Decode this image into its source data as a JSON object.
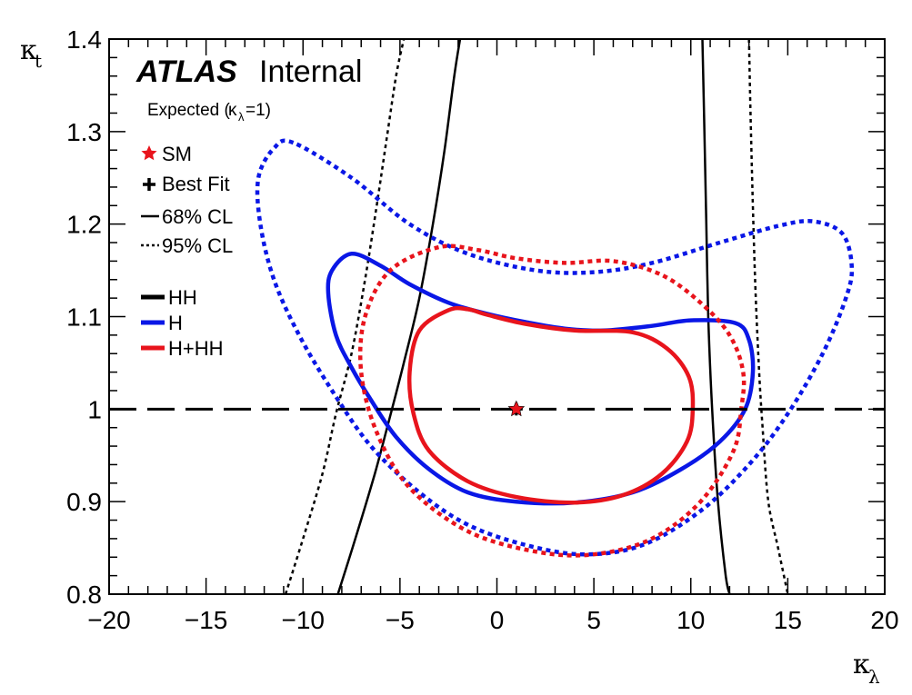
{
  "chart_data": {
    "type": "line",
    "header": {
      "experiment": "ATLAS",
      "status": "Internal"
    },
    "subtitle": {
      "prefix": "Expected (",
      "symbol": "κ",
      "sub": "λ",
      "suffix": "=1)"
    },
    "xlabel": {
      "symbol": "κ",
      "sub": "λ"
    },
    "ylabel": {
      "symbol": "κ",
      "sub": "t"
    },
    "xlim": [
      -20,
      20
    ],
    "ylim": [
      0.8,
      1.4
    ],
    "xticks": [
      -20,
      -15,
      -10,
      -5,
      0,
      5,
      10,
      15,
      20
    ],
    "xtick_labels": [
      "−20",
      "−15",
      "−10",
      "−5",
      "0",
      "5",
      "10",
      "15",
      "20"
    ],
    "yticks": [
      0.8,
      0.9,
      1.0,
      1.1,
      1.2,
      1.3,
      1.4
    ],
    "ytick_labels": [
      "0.8",
      "0.9",
      "1",
      "1.1",
      "1.2",
      "1.3",
      "1.4"
    ],
    "grid": false,
    "colors": {
      "HH": "#000000",
      "H": "#0a17e6",
      "H+HH": "#e8141c",
      "SM": "#e8141c"
    },
    "legend": {
      "markers": [
        {
          "symbol": "star",
          "label": "SM"
        },
        {
          "symbol": "cross",
          "label": "Best Fit"
        },
        {
          "symbol": "solid",
          "label": "68% CL"
        },
        {
          "symbol": "dotted",
          "label": "95% CL"
        }
      ],
      "series": [
        {
          "key": "HH",
          "label": "HH"
        },
        {
          "key": "H",
          "label": "H"
        },
        {
          "key": "H+HH",
          "label": "H+HH"
        }
      ]
    },
    "reference_line": {
      "y": 1.0,
      "style": "dashed"
    },
    "sm_point": {
      "x": 1,
      "y": 1
    },
    "best_fit_point": {
      "x": 1,
      "y": 1
    },
    "series": [
      {
        "name": "HH",
        "cl": "68%",
        "closed": false,
        "points": [
          [
            -8.2,
            0.8
          ],
          [
            -7.3,
            0.86
          ],
          [
            -6.3,
            0.93
          ],
          [
            -5.6,
            0.985
          ],
          [
            -4.8,
            1.05
          ],
          [
            -4.0,
            1.12
          ],
          [
            -3.3,
            1.2
          ],
          [
            -2.7,
            1.28
          ],
          [
            -2.2,
            1.36
          ],
          [
            -1.9,
            1.4
          ]
        ]
      },
      {
        "name": "HH",
        "cl": "68%",
        "closed": false,
        "points": [
          [
            10.6,
            1.4
          ],
          [
            10.7,
            1.3
          ],
          [
            10.8,
            1.2
          ],
          [
            10.9,
            1.1
          ],
          [
            11.1,
            1.0
          ],
          [
            11.4,
            0.9
          ],
          [
            11.8,
            0.82
          ],
          [
            12.0,
            0.8
          ]
        ]
      },
      {
        "name": "HH",
        "cl": "95%",
        "closed": false,
        "points": [
          [
            -10.9,
            0.8
          ],
          [
            -10.0,
            0.86
          ],
          [
            -9.0,
            0.93
          ],
          [
            -8.3,
            0.995
          ],
          [
            -7.5,
            1.06
          ],
          [
            -6.8,
            1.14
          ],
          [
            -6.2,
            1.22
          ],
          [
            -5.7,
            1.29
          ],
          [
            -5.2,
            1.36
          ],
          [
            -4.8,
            1.4
          ]
        ]
      },
      {
        "name": "HH",
        "cl": "95%",
        "closed": false,
        "points": [
          [
            13.0,
            1.4
          ],
          [
            13.1,
            1.3
          ],
          [
            13.3,
            1.15
          ],
          [
            13.5,
            1.05
          ],
          [
            13.7,
            0.98
          ],
          [
            14.0,
            0.9
          ],
          [
            14.5,
            0.85
          ],
          [
            15.0,
            0.8
          ]
        ]
      },
      {
        "name": "H",
        "cl": "68%",
        "closed": true,
        "points": [
          [
            -7.5,
            1.168
          ],
          [
            -8.5,
            1.15
          ],
          [
            -8.7,
            1.125
          ],
          [
            -8.3,
            1.08
          ],
          [
            -7.5,
            1.045
          ],
          [
            -6.5,
            1.01
          ],
          [
            -5.2,
            0.97
          ],
          [
            -3.5,
            0.935
          ],
          [
            -1.5,
            0.91
          ],
          [
            1.0,
            0.9
          ],
          [
            4.0,
            0.899
          ],
          [
            7.0,
            0.91
          ],
          [
            9.5,
            0.935
          ],
          [
            11.5,
            0.965
          ],
          [
            12.8,
            1.0
          ],
          [
            13.2,
            1.04
          ],
          [
            13.0,
            1.075
          ],
          [
            12.3,
            1.093
          ],
          [
            10.0,
            1.096
          ],
          [
            8.0,
            1.09
          ],
          [
            5.5,
            1.085
          ],
          [
            3.5,
            1.087
          ],
          [
            1.5,
            1.094
          ],
          [
            -0.5,
            1.103
          ],
          [
            -2.5,
            1.115
          ],
          [
            -4.5,
            1.135
          ],
          [
            -6.0,
            1.155
          ]
        ]
      },
      {
        "name": "H",
        "cl": "95%",
        "closed": true,
        "points": [
          [
            -10.5,
            1.288
          ],
          [
            -11.5,
            1.282
          ],
          [
            -12.3,
            1.25
          ],
          [
            -12.2,
            1.2
          ],
          [
            -11.5,
            1.14
          ],
          [
            -10.2,
            1.08
          ],
          [
            -8.5,
            1.02
          ],
          [
            -6.5,
            0.96
          ],
          [
            -4.0,
            0.91
          ],
          [
            -1.5,
            0.875
          ],
          [
            1.5,
            0.853
          ],
          [
            4.5,
            0.843
          ],
          [
            7.5,
            0.853
          ],
          [
            10.5,
            0.89
          ],
          [
            13.0,
            0.94
          ],
          [
            15.0,
            0.995
          ],
          [
            16.8,
            1.06
          ],
          [
            18.0,
            1.12
          ],
          [
            18.3,
            1.155
          ],
          [
            17.8,
            1.19
          ],
          [
            16.3,
            1.203
          ],
          [
            14.5,
            1.198
          ],
          [
            11.5,
            1.18
          ],
          [
            8.0,
            1.158
          ],
          [
            5.0,
            1.148
          ],
          [
            2.0,
            1.15
          ],
          [
            -1.5,
            1.168
          ],
          [
            -4.5,
            1.2
          ],
          [
            -7.5,
            1.25
          ]
        ]
      },
      {
        "name": "H+HH",
        "cl": "68%",
        "closed": true,
        "points": [
          [
            -2.5,
            1.107
          ],
          [
            -4.0,
            1.085
          ],
          [
            -4.5,
            1.04
          ],
          [
            -4.3,
            0.995
          ],
          [
            -3.5,
            0.955
          ],
          [
            -1.5,
            0.922
          ],
          [
            1.0,
            0.905
          ],
          [
            4.0,
            0.899
          ],
          [
            6.5,
            0.907
          ],
          [
            8.5,
            0.93
          ],
          [
            9.8,
            0.965
          ],
          [
            10.1,
            1.0
          ],
          [
            9.9,
            1.035
          ],
          [
            8.8,
            1.065
          ],
          [
            7.0,
            1.083
          ],
          [
            4.0,
            1.085
          ],
          [
            1.5,
            1.092
          ],
          [
            -0.5,
            1.102
          ],
          [
            -1.5,
            1.108
          ]
        ]
      },
      {
        "name": "H+HH",
        "cl": "95%",
        "closed": true,
        "points": [
          [
            -3.0,
            1.175
          ],
          [
            -5.5,
            1.15
          ],
          [
            -6.8,
            1.1
          ],
          [
            -7.0,
            1.04
          ],
          [
            -6.2,
            0.975
          ],
          [
            -4.5,
            0.915
          ],
          [
            -1.5,
            0.868
          ],
          [
            2.0,
            0.846
          ],
          [
            5.0,
            0.843
          ],
          [
            8.0,
            0.86
          ],
          [
            10.5,
            0.9
          ],
          [
            12.2,
            0.955
          ],
          [
            12.6,
            1.0
          ],
          [
            12.7,
            1.04
          ],
          [
            12.0,
            1.08
          ],
          [
            10.5,
            1.115
          ],
          [
            8.5,
            1.145
          ],
          [
            6.0,
            1.16
          ],
          [
            3.5,
            1.158
          ],
          [
            1.0,
            1.163
          ],
          [
            -1.0,
            1.172
          ]
        ]
      }
    ]
  }
}
